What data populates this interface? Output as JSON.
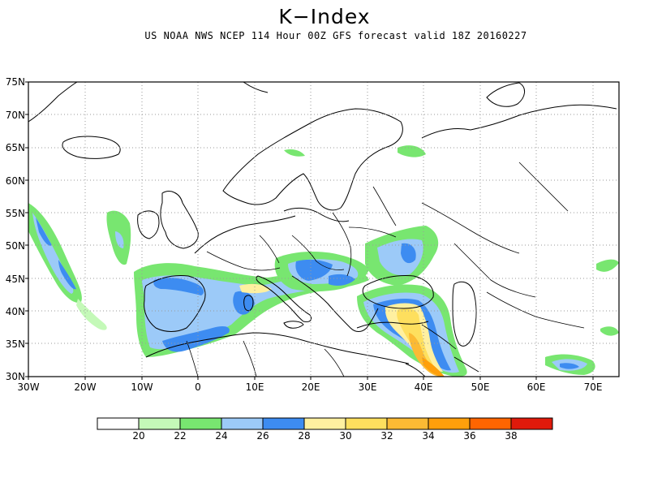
{
  "title": "K−Index",
  "subtitle": "US NOAA NWS NCEP 114 Hour 00Z GFS forecast valid 18Z 20160227",
  "lat_labels": [
    "75N",
    "70N",
    "65N",
    "60N",
    "55N",
    "50N",
    "45N",
    "40N",
    "35N",
    "30N"
  ],
  "lon_labels": [
    "30W",
    "20W",
    "10W",
    "0",
    "10E",
    "20E",
    "30E",
    "40E",
    "50E",
    "60E",
    "70E"
  ],
  "colorbar": {
    "colors": [
      "#ffffff",
      "#c4f9b8",
      "#78e670",
      "#9ccaf8",
      "#3d8cf1",
      "#fff0a0",
      "#fedf5e",
      "#fcba34",
      "#ff9f0b",
      "#ff6500",
      "#e01a0b"
    ],
    "labels": [
      "20",
      "22",
      "24",
      "26",
      "28",
      "30",
      "32",
      "34",
      "36",
      "38"
    ]
  },
  "colors": {
    "land_line": "#000000",
    "grid": "#9a9a9a"
  }
}
